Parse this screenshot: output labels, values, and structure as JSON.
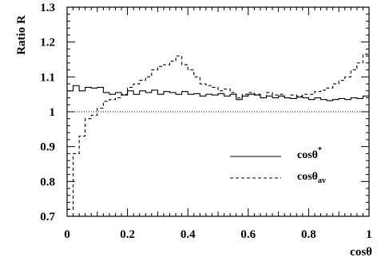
{
  "chart_data": {
    "type": "line",
    "xlabel": "cosθ",
    "ylabel": "Ratio R",
    "xlim": [
      0,
      1
    ],
    "ylim": [
      0.7,
      1.3
    ],
    "x_ticks": [
      "0",
      "0.2",
      "0.4",
      "0.6",
      "0.8",
      "1"
    ],
    "y_ticks": [
      "0.7",
      "0.8",
      "0.9",
      "1",
      "1.1",
      "1.2",
      "1.3"
    ],
    "reference_line": {
      "y": 1.0,
      "style": "dotted"
    },
    "legend": {
      "placement": "center-right",
      "entries": [
        {
          "base": "cosθ",
          "sup": "*",
          "sub": "",
          "style": "solid"
        },
        {
          "base": "cosθ",
          "sup": "",
          "sub": "av",
          "style": "dashed"
        }
      ]
    },
    "series": [
      {
        "style": "solid",
        "step": true,
        "x": [
          0.0,
          0.02,
          0.04,
          0.06,
          0.08,
          0.1,
          0.12,
          0.14,
          0.16,
          0.18,
          0.2,
          0.22,
          0.24,
          0.26,
          0.28,
          0.3,
          0.32,
          0.34,
          0.36,
          0.38,
          0.4,
          0.42,
          0.44,
          0.46,
          0.48,
          0.5,
          0.52,
          0.54,
          0.56,
          0.58,
          0.6,
          0.62,
          0.64,
          0.66,
          0.68,
          0.7,
          0.72,
          0.74,
          0.76,
          0.78,
          0.8,
          0.82,
          0.84,
          0.86,
          0.88,
          0.9,
          0.92,
          0.94,
          0.96,
          0.98,
          1.0
        ],
        "y": [
          1.06,
          1.075,
          1.06,
          1.07,
          1.068,
          1.07,
          1.055,
          1.05,
          1.055,
          1.048,
          1.06,
          1.05,
          1.06,
          1.055,
          1.062,
          1.05,
          1.058,
          1.055,
          1.05,
          1.058,
          1.05,
          1.052,
          1.045,
          1.05,
          1.048,
          1.052,
          1.045,
          1.05,
          1.035,
          1.045,
          1.05,
          1.048,
          1.04,
          1.045,
          1.04,
          1.045,
          1.04,
          1.038,
          1.042,
          1.04,
          1.035,
          1.04,
          1.035,
          1.032,
          1.035,
          1.038,
          1.035,
          1.04,
          1.038,
          1.045,
          1.058
        ]
      },
      {
        "style": "dashed",
        "step": true,
        "x": [
          0.0,
          0.02,
          0.04,
          0.06,
          0.08,
          0.1,
          0.12,
          0.14,
          0.16,
          0.18,
          0.2,
          0.22,
          0.24,
          0.26,
          0.28,
          0.3,
          0.32,
          0.34,
          0.36,
          0.38,
          0.4,
          0.42,
          0.44,
          0.46,
          0.48,
          0.5,
          0.52,
          0.54,
          0.56,
          0.58,
          0.6,
          0.62,
          0.64,
          0.66,
          0.68,
          0.7,
          0.72,
          0.74,
          0.76,
          0.78,
          0.8,
          0.82,
          0.84,
          0.86,
          0.88,
          0.9,
          0.92,
          0.94,
          0.96,
          0.98,
          1.0
        ],
        "y": [
          0.72,
          0.88,
          0.93,
          0.98,
          0.99,
          1.01,
          1.03,
          1.035,
          1.04,
          1.05,
          1.07,
          1.08,
          1.09,
          1.1,
          1.12,
          1.13,
          1.135,
          1.145,
          1.16,
          1.135,
          1.12,
          1.1,
          1.08,
          1.075,
          1.07,
          1.06,
          1.065,
          1.055,
          1.04,
          1.05,
          1.055,
          1.05,
          1.04,
          1.055,
          1.048,
          1.05,
          1.04,
          1.048,
          1.045,
          1.05,
          1.05,
          1.058,
          1.062,
          1.068,
          1.08,
          1.09,
          1.1,
          1.12,
          1.14,
          1.165,
          1.23
        ]
      }
    ]
  }
}
